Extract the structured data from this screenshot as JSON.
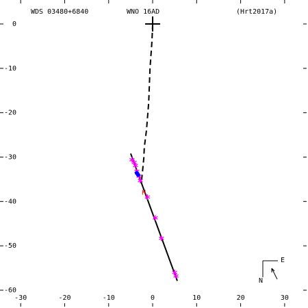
{
  "chart_data": {
    "type": "scatter",
    "titles": [
      "WDS 03480+6840",
      "WNO  16AD",
      "(Hrt2017a)"
    ],
    "compass": {
      "east": "E",
      "north": "N"
    },
    "xlim": [
      -34.7,
      35
    ],
    "ylim": [
      -63.7,
      5.4
    ],
    "xticks": [
      -30,
      -20,
      -10,
      0,
      10,
      20,
      30
    ],
    "yticks": [
      0,
      -10,
      -20,
      -30,
      -40,
      -50,
      -60
    ],
    "series": [
      {
        "style": "dashed",
        "color": "#000000",
        "x": [
          0,
          -0.16,
          -0.6,
          -0.9,
          -1.4,
          -1.9,
          -2.0,
          -2.3,
          -2.6
        ],
        "values": [
          0,
          -3.9,
          -10,
          -17.7,
          -23.9,
          -27.8,
          -30.1,
          -33.2,
          -36.0
        ]
      },
      {
        "style": "solid",
        "color": "#000000",
        "x": [
          -5.0,
          5.6
        ],
        "values": [
          -29.2,
          -57.9
        ]
      },
      {
        "marker": "asterisk",
        "color": "#ff00ff",
        "x": [
          -4.7,
          -4.2,
          -3.9,
          -3.6,
          -3.1,
          -2.8,
          -1.2,
          0.6,
          2.0,
          5.0,
          5.3
        ],
        "values": [
          -30.6,
          -31.2,
          -31.9,
          -33.2,
          -34.3,
          -35.3,
          -39.0,
          -43.7,
          -48.3,
          -56.0,
          -56.8
        ]
      },
      {
        "marker": "dot",
        "color": "#0000ff",
        "x": [
          -3.6,
          -3.3
        ],
        "values": [
          -33.6,
          -34.0
        ]
      },
      {
        "marker": "H",
        "color": "#ff0000",
        "x": [
          -2.0
        ],
        "values": [
          -38.0
        ]
      },
      {
        "marker": "plus",
        "color": "#000000",
        "x": [
          0
        ],
        "values": [
          0
        ]
      }
    ]
  }
}
